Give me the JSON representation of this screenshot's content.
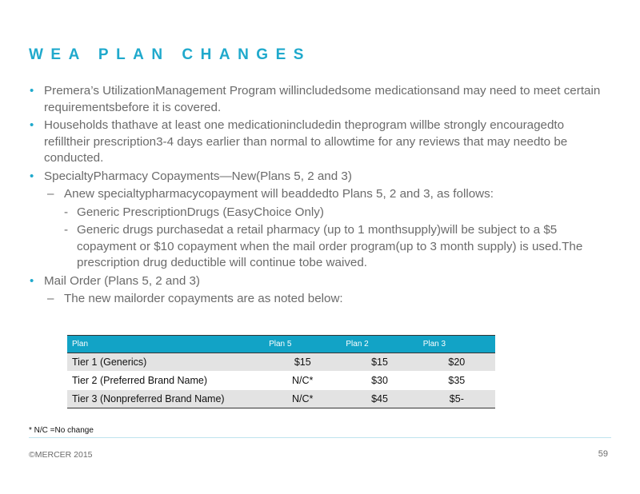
{
  "title": "WEA PLAN CHANGES",
  "bullets": [
    {
      "text": "Premera’s UtilizationManagement   Program willincludedsome  medicationsand  may need to meet  certain requirementsbefore  it is covered."
    },
    {
      "text": "Households  thathave  at least one medicationincludedin  theprogram  willbe  strongly encouragedto  refilltheir prescription3-4 days earlier than  normal to allowtime  for any reviews that may needto  be conducted."
    },
    {
      "text": "SpecialtyPharmacy  Copayments—New(Plans   5, 2 and 3)"
    },
    {
      "sub": "Anew  specialtypharmacycopayment  will beaddedto  Plans 5, 2 and 3, as follows:"
    },
    {
      "subsub": "Generic  PrescriptionDrugs  (EasyChoice Only)"
    },
    {
      "subsub": "Generic drugs purchasedat  a retail pharmacy  (up to 1 monthsupply)will  be subject to a $5 copayment  or $10 copayment  when  the mail order program(up to 3 month  supply) is used.The  prescription  drug deductible  will continue tobe waived."
    },
    {
      "text": "Mail Order  (Plans  5, 2 and 3)"
    },
    {
      "sub": "The  new mailorder  copayments  are as noted below:"
    }
  ],
  "table": {
    "headers": [
      "Plan",
      "Plan    5",
      "Plan    2",
      "Plan    3"
    ],
    "rows": [
      [
        "Tier 1 (Generics)",
        "$15",
        "$15",
        "$20"
      ],
      [
        "Tier 2 (Preferred Brand Name)",
        "N/C*",
        "$30",
        "$35"
      ],
      [
        "Tier 3 (Nonpreferred Brand Name)",
        "N/C*",
        "$45",
        "$5-"
      ]
    ]
  },
  "footnote": "*  N/C  =No change",
  "copyright": "©MERCER  2015",
  "page_number": "59",
  "colors": {
    "accent": "#1fa9cc",
    "table_header": "#12a3c6",
    "row_shade": "#e3e3e3"
  }
}
